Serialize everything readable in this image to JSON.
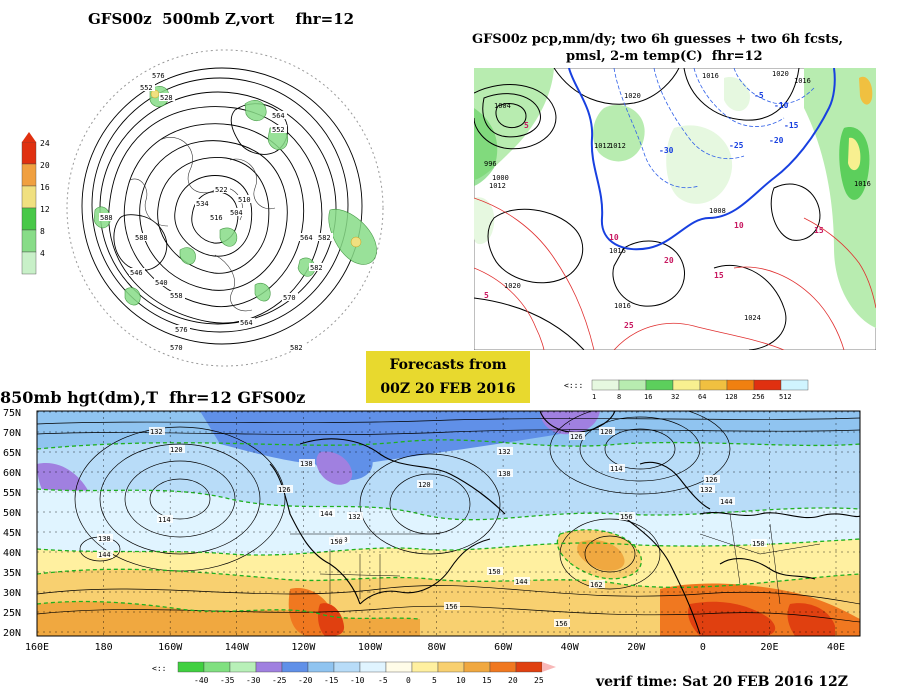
{
  "panels": {
    "top_left": {
      "title": "GFS00z  500mb Z,vort    fhr=12",
      "legend": {
        "ticks": [
          "24",
          "20",
          "16",
          "12",
          "8",
          "4"
        ],
        "colors": [
          "#e03010",
          "#f0a040",
          "#f0e080",
          "#48c848",
          "#88dc88",
          "#c8f0c8"
        ]
      },
      "contour_labels": [
        "576",
        "552",
        "528",
        "534",
        "564",
        "552",
        "510",
        "522",
        "588",
        "564",
        "582",
        "546",
        "540",
        "558",
        "576",
        "570",
        "582",
        "588",
        "564",
        "516",
        "504",
        "582",
        "570"
      ]
    },
    "top_right": {
      "title_line1": "GFS00z pcp,mm/dy; two 6h guesses + two 6h fcsts,",
      "title_line2": "pmsl, 2-m temp(C)  fhr=12",
      "legend": {
        "ticks": [
          "1",
          "8",
          "16",
          "32",
          "64",
          "128",
          "256",
          "512"
        ],
        "colors": [
          "#e6f8e0",
          "#b8ecb0",
          "#5ccf5c",
          "#f8f090",
          "#f0c040",
          "#f08010",
          "#e03010",
          "#d0f4ff"
        ]
      },
      "contour_labels": [
        "1016",
        "1020",
        "1004",
        "1012",
        "996",
        "1016",
        "1000",
        "1012",
        "1008",
        "1016",
        "1020",
        "1024",
        "1016",
        "1012",
        "1020",
        "1016"
      ],
      "temp_labels": [
        "-5",
        "-10",
        "-15",
        "-20",
        "-25",
        "-30",
        "5",
        "10",
        "15",
        "20",
        "25",
        "5",
        "10",
        "15"
      ]
    },
    "forecast_box": {
      "line1": "Forecasts from",
      "line2": "00Z 20 FEB 2016"
    },
    "bottom": {
      "title": "850mb hgt(dm),T  fhr=12 GFS00z",
      "lat_labels": [
        "75N",
        "70N",
        "65N",
        "60N",
        "55N",
        "50N",
        "45N",
        "40N",
        "35N",
        "30N",
        "25N",
        "20N"
      ],
      "lon_labels": [
        "160E",
        "180",
        "160W",
        "140W",
        "120W",
        "100W",
        "80W",
        "60W",
        "40W",
        "20W",
        "0",
        "20E",
        "40E"
      ],
      "height_labels": [
        "132",
        "120",
        "114",
        "126",
        "138",
        "144",
        "150",
        "132",
        "126",
        "120",
        "138",
        "114",
        "132",
        "126",
        "144",
        "150",
        "156",
        "162",
        "156",
        "138",
        "144",
        "150",
        "156",
        "120",
        "132",
        "150",
        "144"
      ],
      "legend": {
        "ticks": [
          "-40",
          "-35",
          "-30",
          "-25",
          "-20",
          "-15",
          "-10",
          "-5",
          "0",
          "5",
          "10",
          "15",
          "20",
          "25"
        ],
        "colors": [
          "#40d040",
          "#80e080",
          "#b8f0b8",
          "#a080e0",
          "#6090e8",
          "#90c4f0",
          "#b8dcf8",
          "#e0f4ff",
          "#fffce8",
          "#fff0a0",
          "#f8d070",
          "#f0a840",
          "#f07820",
          "#e04010"
        ]
      },
      "verif_time": "verif time: Sat 20 FEB 2016 12Z"
    }
  }
}
